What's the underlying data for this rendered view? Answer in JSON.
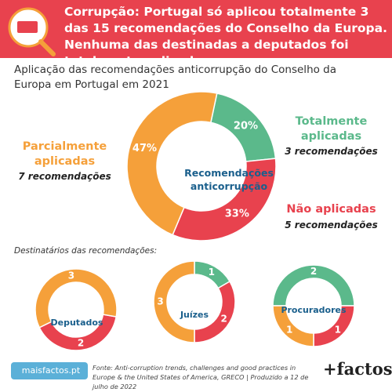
{
  "header": {
    "title": "Corrupção: Portugal só aplicou totalmente 3 das 15 recomendações do Conselho da Europa. Nenhuma das destinadas a deputados foi totalmente aplicada."
  },
  "subtitle": "Aplicação das recomendações anticorrupção do Conselho da Europa em Portugal em 2021",
  "section_label": "Destinatários das recomendações:",
  "chart_data": [
    {
      "type": "pie",
      "center_label": "Recomendações anticorrupção",
      "categories": [
        "Totalmente aplicadas",
        "Não aplicadas",
        "Parcialmente aplicadas"
      ],
      "values": [
        20,
        33,
        47
      ],
      "value_labels": [
        "20%",
        "33%",
        "47%"
      ],
      "colors": [
        "#5bb98b",
        "#e8424e",
        "#f5a03a"
      ],
      "category_notes": [
        "3 recomendações",
        "5 recomendações",
        "7 recomendações"
      ]
    },
    {
      "type": "pie",
      "center_label": "Deputados",
      "values": [
        2,
        3
      ],
      "colors": [
        "#e8424e",
        "#f5a03a"
      ]
    },
    {
      "type": "pie",
      "center_label": "Juízes",
      "values": [
        1,
        2,
        3
      ],
      "colors": [
        "#5bb98b",
        "#e8424e",
        "#f5a03a"
      ]
    },
    {
      "type": "pie",
      "center_label": "Procuradores",
      "values": [
        2,
        1,
        1
      ],
      "colors": [
        "#5bb98b",
        "#e8424e",
        "#f5a03a"
      ]
    }
  ],
  "footer": {
    "brand": "maisfactos.pt",
    "source": "Fonte: Anti-corruption trends, challenges and good practices in Europe & the United States of America, GRECO | Produzido a 12 de julho de 2022",
    "logo": "+factos"
  }
}
